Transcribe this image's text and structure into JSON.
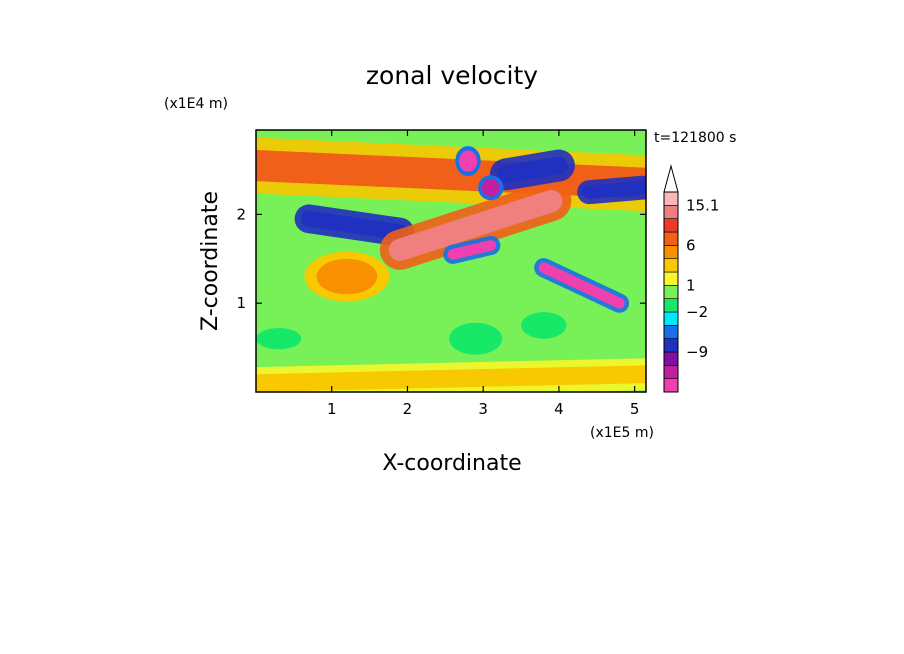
{
  "chart_data": {
    "type": "heatmap",
    "title": "zonal velocity",
    "xlabel": "X-coordinate",
    "ylabel": "Z-coordinate",
    "x_unit": "(x1E5 m)",
    "z_unit": "(x1E4 m)",
    "time_label": "t=121800 s",
    "xlim": [
      0,
      5.15
    ],
    "ylim": [
      0,
      2.95
    ],
    "x_ticks": [
      1,
      2,
      3,
      4,
      5
    ],
    "y_ticks": [
      1,
      2
    ],
    "colorbar": {
      "ticks": [
        "15.1",
        "6",
        "1",
        "-2",
        "-9"
      ],
      "levels": [
        {
          "color": "#f040b0"
        },
        {
          "color": "#c020a0"
        },
        {
          "color": "#8010a0"
        },
        {
          "color": "#2030c0"
        },
        {
          "color": "#1870e8"
        },
        {
          "color": "#00e8ff"
        },
        {
          "color": "#18e868"
        },
        {
          "color": "#78f058"
        },
        {
          "color": "#f8f828"
        },
        {
          "color": "#f8c800"
        },
        {
          "color": "#f89000"
        },
        {
          "color": "#f06018"
        },
        {
          "color": "#f03828"
        },
        {
          "color": "#f08080"
        },
        {
          "color": "#f8b8b8"
        }
      ],
      "extend_top": true
    },
    "features": [
      {
        "type": "band",
        "x0": 0.0,
        "z0": 2.55,
        "x1": 5.15,
        "z1": 2.35,
        "width": 0.35,
        "value": 4
      },
      {
        "type": "band",
        "x0": 0.7,
        "z0": 1.95,
        "x1": 1.9,
        "z1": 1.8,
        "width": 0.18,
        "value": -8
      },
      {
        "type": "band",
        "x0": 1.9,
        "z0": 1.6,
        "x1": 3.9,
        "z1": 2.15,
        "width": 0.25,
        "value": 8
      },
      {
        "type": "band",
        "x0": 3.3,
        "z0": 2.45,
        "x1": 4.0,
        "z1": 2.55,
        "width": 0.2,
        "value": -8
      },
      {
        "type": "band",
        "x0": 4.4,
        "z0": 2.25,
        "x1": 5.1,
        "z1": 2.3,
        "width": 0.15,
        "value": -8
      },
      {
        "type": "band",
        "x0": 2.6,
        "z0": 1.55,
        "x1": 3.1,
        "z1": 1.65,
        "width": 0.12,
        "value": -7
      },
      {
        "type": "band",
        "x0": 3.8,
        "z0": 1.4,
        "x1": 4.8,
        "z1": 1.0,
        "width": 0.12,
        "value": -7
      },
      {
        "type": "band",
        "x0": 0.0,
        "z0": 0.1,
        "x1": 5.15,
        "z1": 0.2,
        "width": 0.2,
        "value": 2
      },
      {
        "type": "blob",
        "x": 2.9,
        "z": 0.6,
        "rx": 0.35,
        "rz": 0.18,
        "value": -1
      },
      {
        "type": "blob",
        "x": 3.8,
        "z": 0.75,
        "rx": 0.3,
        "rz": 0.15,
        "value": -1
      },
      {
        "type": "blob",
        "x": 2.8,
        "z": 2.6,
        "rx": 0.12,
        "rz": 0.12,
        "value": -7
      },
      {
        "type": "blob",
        "x": 3.1,
        "z": 2.3,
        "rx": 0.12,
        "rz": 0.1,
        "value": -6
      },
      {
        "type": "blob",
        "x": 1.2,
        "z": 1.3,
        "rx": 0.4,
        "rz": 0.2,
        "value": 3
      },
      {
        "type": "blob",
        "x": 0.3,
        "z": 0.6,
        "rx": 0.3,
        "rz": 0.12,
        "value": -1
      }
    ]
  }
}
